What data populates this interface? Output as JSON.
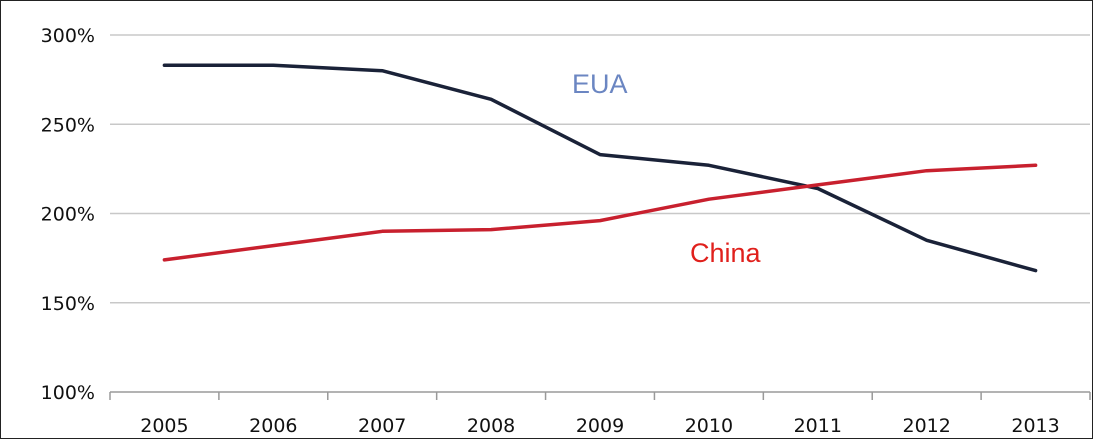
{
  "chart_data": {
    "type": "line",
    "title": "",
    "xlabel": "",
    "ylabel": "",
    "categories": [
      "2005",
      "2006",
      "2007",
      "2008",
      "2009",
      "2010",
      "2011",
      "2012",
      "2013"
    ],
    "ylim": [
      100,
      300
    ],
    "yticks": [
      100,
      150,
      200,
      250,
      300
    ],
    "ytick_labels": [
      "100%",
      "150%",
      "200%",
      "250%",
      "300%"
    ],
    "grid": true,
    "series": [
      {
        "name": "EUA",
        "color": "#1a2238",
        "label_color": "#6b86c2",
        "values": [
          283,
          283,
          280,
          264,
          233,
          227,
          214,
          185,
          168
        ]
      },
      {
        "name": "China",
        "color": "#c8202e",
        "label_color": "#e0201c",
        "values": [
          174,
          182,
          190,
          191,
          196,
          208,
          216,
          224,
          227
        ]
      }
    ]
  }
}
